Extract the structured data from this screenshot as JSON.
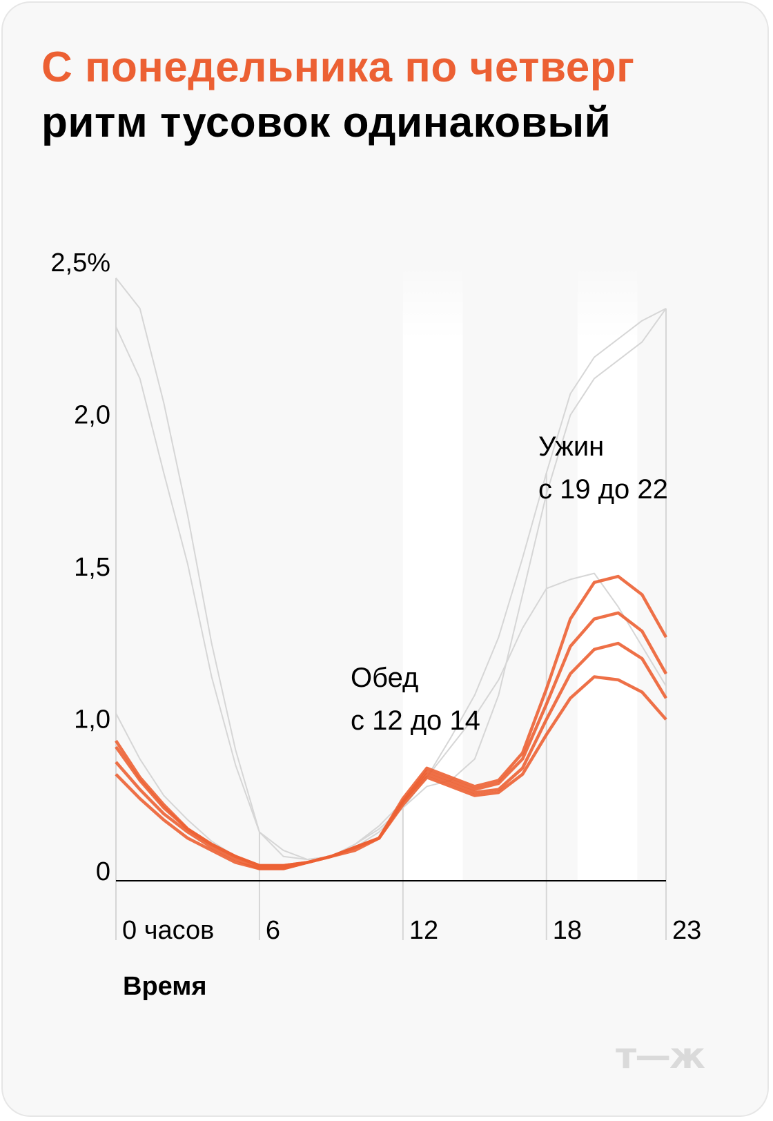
{
  "title": {
    "highlight": "С понедельника по четверг",
    "rest": " ритм тусовок одинаковый"
  },
  "colors": {
    "accent": "#ec6033",
    "other_days": "#d6d6d6",
    "background": "#f8f8f8"
  },
  "chart_data": {
    "type": "line",
    "title": "С понедельника по четверг ритм тусовок одинаковый",
    "xlabel": "Время",
    "ylabel": "",
    "x": [
      0,
      1,
      2,
      3,
      4,
      5,
      6,
      7,
      8,
      9,
      10,
      11,
      12,
      13,
      14,
      15,
      16,
      17,
      18,
      19,
      20,
      21,
      22,
      23
    ],
    "x_ticks": [
      {
        "value": 0,
        "label": "0 часов"
      },
      {
        "value": 6,
        "label": "6"
      },
      {
        "value": 12,
        "label": "12"
      },
      {
        "value": 18,
        "label": "18"
      },
      {
        "value": 23,
        "label": "23"
      }
    ],
    "y_ticks": [
      {
        "value": 0.5,
        "label": "0"
      },
      {
        "value": 1.0,
        "label": "1,0"
      },
      {
        "value": 1.5,
        "label": "1,5"
      },
      {
        "value": 2.0,
        "label": "2,0"
      },
      {
        "value": 2.5,
        "label": "2,5%"
      }
    ],
    "ylim": [
      0.5,
      2.5
    ],
    "grid": "vertical at labelled hours",
    "highlight_bands": [
      {
        "from": 12,
        "to": 14.5,
        "label": [
          "Обед",
          "с 12 до 14"
        ]
      },
      {
        "from": 19.3,
        "to": 21.8,
        "label": [
          "Ужин",
          "с 19 до 22"
        ]
      }
    ],
    "series": [
      {
        "group": "other",
        "values": [
          2.48,
          2.38,
          2.07,
          1.7,
          1.28,
          0.93,
          0.66,
          0.6,
          0.57,
          0.58,
          0.61,
          0.66,
          0.74,
          0.84,
          0.97,
          1.11,
          1.3,
          1.56,
          1.84,
          2.1,
          2.22,
          2.28,
          2.34,
          2.38
        ]
      },
      {
        "group": "other",
        "values": [
          2.32,
          2.15,
          1.84,
          1.54,
          1.17,
          0.88,
          0.66,
          0.58,
          0.57,
          0.58,
          0.62,
          0.67,
          0.74,
          0.81,
          0.83,
          0.9,
          1.11,
          1.44,
          1.77,
          2.03,
          2.15,
          2.21,
          2.27,
          2.38
        ]
      },
      {
        "group": "other",
        "values": [
          1.05,
          0.9,
          0.78,
          0.7,
          0.63,
          0.58,
          0.55,
          0.55,
          0.56,
          0.58,
          0.62,
          0.68,
          0.76,
          0.84,
          0.94,
          1.04,
          1.16,
          1.33,
          1.46,
          1.49,
          1.51,
          1.4,
          1.27,
          1.14
        ]
      },
      {
        "group": "mon-thu",
        "values": [
          0.96,
          0.84,
          0.75,
          0.67,
          0.62,
          0.58,
          0.55,
          0.55,
          0.56,
          0.58,
          0.61,
          0.64,
          0.77,
          0.87,
          0.84,
          0.81,
          0.83,
          0.92,
          1.13,
          1.36,
          1.48,
          1.5,
          1.44,
          1.3
        ]
      },
      {
        "group": "mon-thu",
        "values": [
          0.94,
          0.83,
          0.74,
          0.67,
          0.62,
          0.58,
          0.55,
          0.55,
          0.56,
          0.58,
          0.61,
          0.64,
          0.76,
          0.86,
          0.83,
          0.8,
          0.82,
          0.9,
          1.08,
          1.27,
          1.36,
          1.38,
          1.32,
          1.18
        ]
      },
      {
        "group": "mon-thu",
        "values": [
          0.89,
          0.8,
          0.72,
          0.66,
          0.61,
          0.57,
          0.54,
          0.54,
          0.56,
          0.58,
          0.61,
          0.64,
          0.76,
          0.85,
          0.82,
          0.79,
          0.8,
          0.87,
          1.03,
          1.18,
          1.26,
          1.28,
          1.23,
          1.1
        ]
      },
      {
        "group": "mon-thu",
        "values": [
          0.85,
          0.77,
          0.7,
          0.64,
          0.6,
          0.56,
          0.54,
          0.54,
          0.56,
          0.58,
          0.6,
          0.64,
          0.75,
          0.84,
          0.81,
          0.78,
          0.79,
          0.85,
          0.98,
          1.1,
          1.17,
          1.16,
          1.12,
          1.03
        ]
      }
    ]
  },
  "logo": "т—ж"
}
